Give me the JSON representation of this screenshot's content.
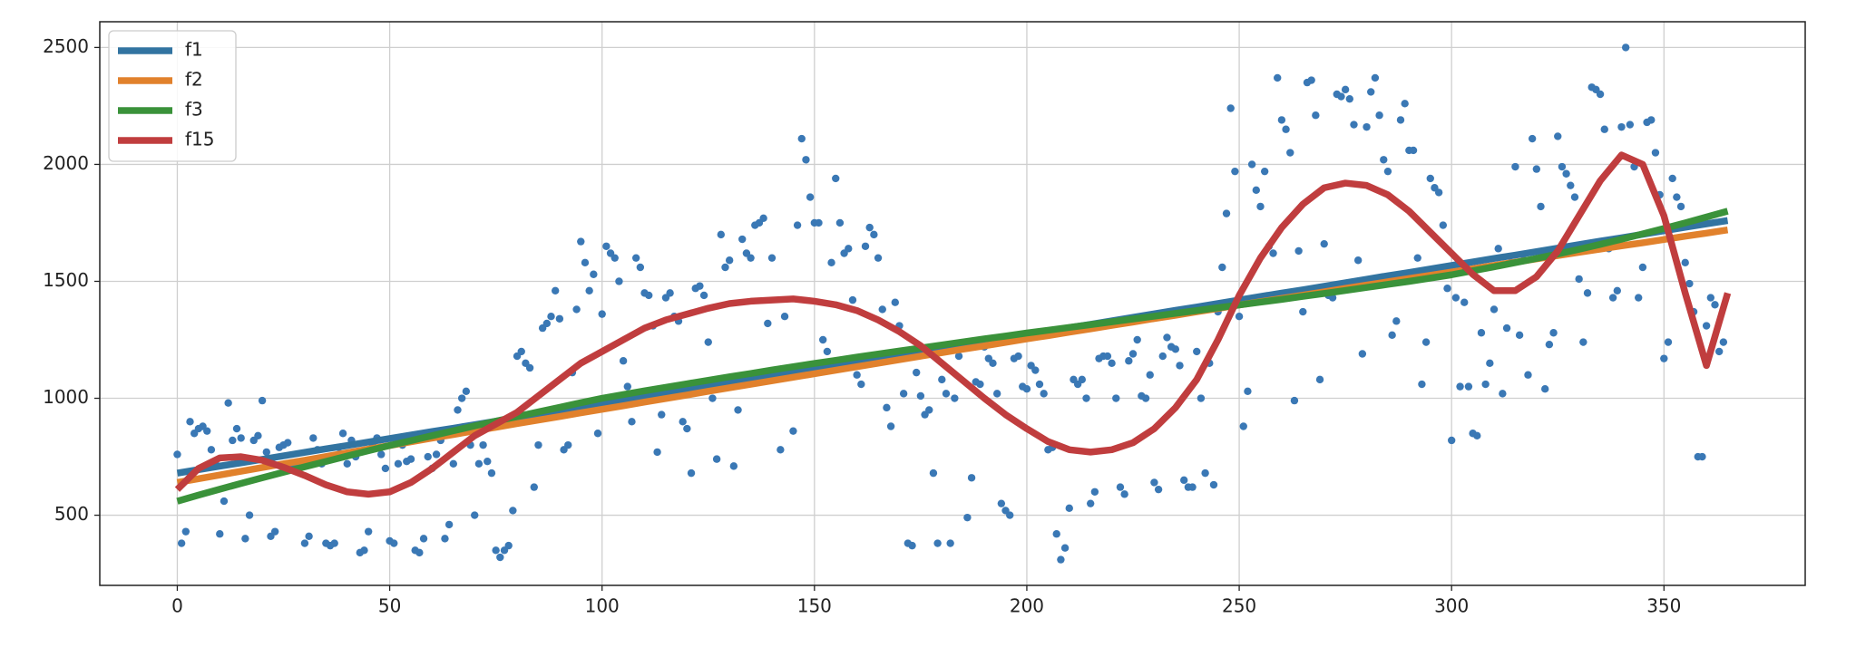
{
  "chart_data": {
    "type": "line",
    "xlim": [
      -18.25,
      383.25
    ],
    "ylim": [
      200,
      2610
    ],
    "xticks": [
      0,
      50,
      100,
      150,
      200,
      250,
      300,
      350
    ],
    "yticks": [
      500,
      1000,
      1500,
      2000,
      2500
    ],
    "grid": true,
    "legend": "upper left",
    "x": [
      0,
      5,
      10,
      15,
      20,
      25,
      30,
      35,
      40,
      45,
      50,
      55,
      60,
      65,
      70,
      75,
      80,
      85,
      90,
      95,
      100,
      105,
      110,
      115,
      120,
      125,
      130,
      135,
      140,
      145,
      150,
      155,
      160,
      165,
      170,
      175,
      180,
      185,
      190,
      195,
      200,
      205,
      210,
      215,
      220,
      225,
      230,
      235,
      240,
      245,
      250,
      255,
      260,
      265,
      270,
      275,
      280,
      285,
      290,
      295,
      300,
      305,
      310,
      315,
      320,
      325,
      330,
      335,
      340,
      345,
      350,
      355,
      360,
      365
    ],
    "series": [
      {
        "name": "f1",
        "color": "#3274a1",
        "values": [
          680,
          695,
          710,
          724,
          739,
          754,
          769,
          784,
          798,
          813,
          828,
          843,
          858,
          872,
          887,
          902,
          917,
          932,
          946,
          961,
          976,
          991,
          1006,
          1020,
          1035,
          1050,
          1065,
          1080,
          1094,
          1109,
          1124,
          1139,
          1154,
          1168,
          1183,
          1198,
          1213,
          1228,
          1242,
          1257,
          1272,
          1287,
          1302,
          1316,
          1331,
          1346,
          1361,
          1376,
          1390,
          1405,
          1420,
          1435,
          1450,
          1464,
          1479,
          1494,
          1509,
          1524,
          1538,
          1553,
          1568,
          1583,
          1598,
          1612,
          1627,
          1642,
          1657,
          1672,
          1686,
          1701,
          1716,
          1731,
          1746,
          1760
        ]
      },
      {
        "name": "f2",
        "color": "#e1812c",
        "values": [
          640,
          656,
          672,
          688,
          704,
          720,
          735,
          751,
          767,
          783,
          798,
          814,
          830,
          845,
          861,
          876,
          892,
          907,
          922,
          938,
          953,
          968,
          984,
          999,
          1014,
          1030,
          1045,
          1060,
          1075,
          1090,
          1105,
          1120,
          1135,
          1150,
          1165,
          1180,
          1195,
          1210,
          1224,
          1239,
          1254,
          1268,
          1283,
          1297,
          1312,
          1326,
          1341,
          1355,
          1370,
          1384,
          1399,
          1413,
          1427,
          1441,
          1455,
          1470,
          1484,
          1498,
          1512,
          1526,
          1540,
          1554,
          1568,
          1582,
          1596,
          1610,
          1624,
          1638,
          1652,
          1665,
          1679,
          1693,
          1706,
          1720
        ]
      },
      {
        "name": "f3",
        "color": "#3a923a",
        "values": [
          560,
          586,
          611,
          636,
          660,
          684,
          707,
          730,
          753,
          776,
          798,
          819,
          840,
          861,
          882,
          902,
          922,
          942,
          961,
          981,
          1000,
          1016,
          1032,
          1047,
          1062,
          1077,
          1092,
          1106,
          1121,
          1135,
          1149,
          1162,
          1176,
          1189,
          1202,
          1215,
          1228,
          1241,
          1254,
          1266,
          1279,
          1291,
          1303,
          1315,
          1327,
          1339,
          1351,
          1363,
          1375,
          1387,
          1399,
          1411,
          1423,
          1436,
          1448,
          1461,
          1474,
          1487,
          1500,
          1514,
          1528,
          1545,
          1562,
          1580,
          1598,
          1617,
          1637,
          1658,
          1680,
          1703,
          1726,
          1750,
          1775,
          1800
        ]
      },
      {
        "name": "f15",
        "color": "#c03d3e",
        "values": [
          610,
          700,
          745,
          750,
          735,
          705,
          670,
          630,
          600,
          590,
          600,
          640,
          700,
          770,
          840,
          890,
          940,
          1010,
          1080,
          1150,
          1200,
          1250,
          1300,
          1335,
          1360,
          1385,
          1405,
          1415,
          1420,
          1425,
          1415,
          1400,
          1375,
          1335,
          1285,
          1225,
          1150,
          1075,
          1000,
          930,
          870,
          815,
          780,
          770,
          780,
          810,
          870,
          960,
          1080,
          1250,
          1440,
          1600,
          1730,
          1830,
          1900,
          1920,
          1910,
          1870,
          1800,
          1710,
          1620,
          1530,
          1460,
          1460,
          1520,
          1630,
          1780,
          1930,
          2040,
          2000,
          1780,
          1450,
          1140,
          1450
        ]
      }
    ],
    "points": {
      "type": "scatter",
      "color": "#3a78b5",
      "x": [
        0,
        1,
        2,
        3,
        4,
        5,
        6,
        7,
        8,
        9,
        10,
        11,
        12,
        13,
        14,
        15,
        16,
        17,
        18,
        19,
        20,
        21,
        22,
        23,
        24,
        25,
        26,
        27,
        28,
        29,
        30,
        31,
        32,
        33,
        34,
        35,
        36,
        37,
        38,
        39,
        40,
        41,
        42,
        43,
        44,
        45,
        46,
        47,
        48,
        49,
        50,
        51,
        52,
        53,
        54,
        55,
        56,
        57,
        58,
        59,
        60,
        61,
        62,
        63,
        64,
        65,
        66,
        67,
        68,
        69,
        70,
        71,
        72,
        73,
        74,
        75,
        76,
        77,
        78,
        79,
        80,
        81,
        82,
        83,
        84,
        85,
        86,
        87,
        88,
        89,
        90,
        91,
        92,
        93,
        94,
        95,
        96,
        97,
        98,
        99,
        100,
        101,
        102,
        103,
        104,
        105,
        106,
        107,
        108,
        109,
        110,
        111,
        112,
        113,
        114,
        115,
        116,
        117,
        118,
        119,
        120,
        121,
        122,
        123,
        124,
        125,
        126,
        127,
        128,
        129,
        130,
        131,
        132,
        133,
        134,
        135,
        136,
        137,
        138,
        139,
        140,
        141,
        142,
        143,
        144,
        145,
        146,
        147,
        148,
        149,
        150,
        151,
        152,
        153,
        154,
        155,
        156,
        157,
        158,
        159,
        160,
        161,
        162,
        163,
        164,
        165,
        166,
        167,
        168,
        169,
        170,
        171,
        172,
        173,
        174,
        175,
        176,
        177,
        178,
        179,
        180,
        181,
        182,
        183,
        184,
        185,
        186,
        187,
        188,
        189,
        190,
        191,
        192,
        193,
        194,
        195,
        196,
        197,
        198,
        199,
        200,
        201,
        202,
        203,
        204,
        205,
        206,
        207,
        208,
        209,
        210,
        211,
        212,
        213,
        214,
        215,
        216,
        217,
        218,
        219,
        220,
        221,
        222,
        223,
        224,
        225,
        226,
        227,
        228,
        229,
        230,
        231,
        232,
        233,
        234,
        235,
        236,
        237,
        238,
        239,
        240,
        241,
        242,
        243,
        244,
        245,
        246,
        247,
        248,
        249,
        250,
        251,
        252,
        253,
        254,
        255,
        256,
        257,
        258,
        259,
        260,
        261,
        262,
        263,
        264,
        265,
        266,
        267,
        268,
        269,
        270,
        271,
        272,
        273,
        274,
        275,
        276,
        277,
        278,
        279,
        280,
        281,
        282,
        283,
        284,
        285,
        286,
        287,
        288,
        289,
        290,
        291,
        292,
        293,
        294,
        295,
        296,
        297,
        298,
        299,
        300,
        301,
        302,
        303,
        304,
        305,
        306,
        307,
        308,
        309,
        310,
        311,
        312,
        313,
        314,
        315,
        316,
        317,
        318,
        319,
        320,
        321,
        322,
        323,
        324,
        325,
        326,
        327,
        328,
        329,
        330,
        331,
        332,
        333,
        334,
        335,
        336,
        337,
        338,
        339,
        340,
        341,
        342,
        343,
        344,
        345,
        346,
        347,
        348,
        349,
        350,
        351,
        352,
        353,
        354,
        355,
        356,
        357,
        358,
        359,
        360,
        361,
        362,
        363,
        364
      ],
      "values": [
        760,
        380,
        430,
        900,
        850,
        870,
        880,
        860,
        780,
        720,
        420,
        560,
        980,
        820,
        870,
        830,
        400,
        500,
        820,
        840,
        990,
        770,
        410,
        430,
        790,
        800,
        810,
        700,
        720,
        720,
        380,
        410,
        830,
        780,
        720,
        380,
        370,
        380,
        790,
        850,
        720,
        820,
        750,
        340,
        350,
        430,
        800,
        830,
        760,
        700,
        390,
        380,
        720,
        800,
        730,
        740,
        350,
        340,
        400,
        750,
        700,
        760,
        820,
        400,
        460,
        720,
        950,
        1000,
        1030,
        800,
        500,
        720,
        800,
        730,
        680,
        350,
        320,
        350,
        370,
        520,
        1180,
        1200,
        1150,
        1130,
        620,
        800,
        1300,
        1320,
        1350,
        1460,
        1340,
        780,
        800,
        1110,
        1380,
        1670,
        1580,
        1460,
        1530,
        850,
        1360,
        1650,
        1620,
        1600,
        1500,
        1160,
        1050,
        900,
        1600,
        1560,
        1450,
        1440,
        1310,
        770,
        930,
        1430,
        1450,
        1350,
        1330,
        900,
        870,
        680,
        1470,
        1480,
        1440,
        1240,
        1000,
        740,
        1700,
        1560,
        1590,
        710,
        950,
        1680,
        1620,
        1600,
        1740,
        1750,
        1770,
        1320,
        1600,
        1090,
        780,
        1350,
        1110,
        860,
        1740,
        2110,
        2020,
        1860,
        1750,
        1750,
        1250,
        1200,
        1580,
        1940,
        1750,
        1620,
        1640,
        1420,
        1100,
        1060,
        1650,
        1730,
        1700,
        1600,
        1380,
        960,
        880,
        1410,
        1310,
        1020,
        380,
        370,
        1110,
        1010,
        930,
        950,
        680,
        380,
        1080,
        1020,
        380,
        1000,
        1180,
        1230,
        490,
        660,
        1070,
        1060,
        1220,
        1170,
        1150,
        1020,
        550,
        520,
        500,
        1170,
        1180,
        1050,
        1040,
        1140,
        1120,
        1060,
        1020,
        780,
        790,
        420,
        310,
        360,
        530,
        1080,
        1060,
        1080,
        1000,
        550,
        600,
        1170,
        1180,
        1180,
        1150,
        1000,
        620,
        590,
        1160,
        1190,
        1250,
        1010,
        1000,
        1100,
        640,
        610,
        1180,
        1260,
        1220,
        1210,
        1140,
        650,
        620,
        620,
        1200,
        1000,
        680,
        1150,
        630,
        1370,
        1560,
        1790,
        2240,
        1970,
        1350,
        880,
        1030,
        2000,
        1890,
        1820,
        1970,
        1650,
        1620,
        2370,
        2190,
        2150,
        2050,
        990,
        1630,
        1370,
        2350,
        2360,
        2210,
        1080,
        1660,
        1440,
        1430,
        2300,
        2290,
        2320,
        2280,
        2170,
        1590,
        1190,
        2160,
        2310,
        2370,
        2210,
        2020,
        1970,
        1270,
        1330,
        2190,
        2260,
        2060,
        2060,
        1600,
        1060,
        1240,
        1940,
        1900,
        1880,
        1740,
        1470,
        820,
        1430,
        1050,
        1410,
        1050,
        850,
        840,
        1280,
        1060,
        1150,
        1380,
        1640,
        1020,
        1300,
        1580,
        1990,
        1270,
        1590,
        1100,
        2110,
        1980,
        1820,
        1040,
        1230,
        1280,
        2120,
        1990,
        1960,
        1910,
        1860,
        1510,
        1240,
        1450,
        2330,
        2320,
        2300,
        2150,
        1640,
        1430,
        1460,
        2160,
        2500,
        2170,
        1990,
        1430,
        1560,
        2180,
        2190,
        2050,
        1870,
        1170,
        1240,
        1940,
        1860,
        1820,
        1580,
        1490,
        1370,
        750,
        750,
        1310,
        1430,
        1400,
        1200,
        1240
      ]
    }
  }
}
